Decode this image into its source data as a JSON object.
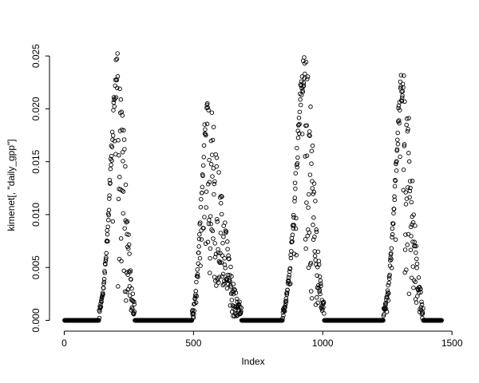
{
  "chart_data": {
    "type": "scatter",
    "title": "",
    "xlabel": "Index",
    "ylabel": "kimenet[, \"daily_gpp\"]",
    "xlim": [
      -57,
      1518
    ],
    "ylim": [
      -0.00102,
      0.02652
    ],
    "x_ticks": [
      0,
      500,
      1000,
      1500
    ],
    "x_tick_labels": [
      "0",
      "500",
      "1000",
      "1500"
    ],
    "y_ticks": [
      0,
      0.005,
      0.01,
      0.015,
      0.02,
      0.025
    ],
    "y_tick_labels": [
      "0.000",
      "0.005",
      "0.010",
      "0.015",
      "0.020",
      "0.025"
    ],
    "marker": "open-circle",
    "marker_radius": 2.3,
    "color": "#000000",
    "background": "#ffffff",
    "grid": false,
    "legend": false,
    "n_points": 1460,
    "seed": 1234,
    "series_description": "Daily GPP values over ~4 years: four seasonal bell-shaped peaks (max ~0.026, ~0.021, ~0.026, ~0.025) separated by long runs of exact zeros forming a thick baseline",
    "seasons": [
      {
        "start": 135,
        "peak": 208,
        "end": 272,
        "height": 0.0258
      },
      {
        "start": 495,
        "peak": 552,
        "end": 685,
        "height": 0.0207
      },
      {
        "start": 845,
        "peak": 932,
        "end": 1005,
        "height": 0.0258
      },
      {
        "start": 1235,
        "peak": 1312,
        "end": 1388,
        "height": 0.0247
      }
    ]
  }
}
